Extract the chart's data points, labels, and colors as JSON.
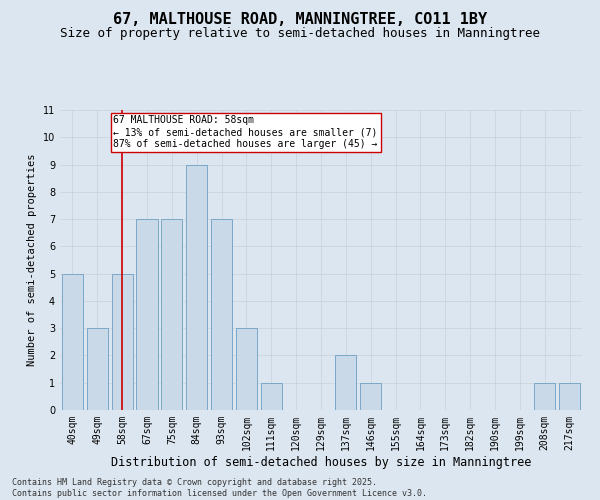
{
  "title1": "67, MALTHOUSE ROAD, MANNINGTREE, CO11 1BY",
  "title2": "Size of property relative to semi-detached houses in Manningtree",
  "xlabel": "Distribution of semi-detached houses by size in Manningtree",
  "ylabel": "Number of semi-detached properties",
  "categories": [
    "40sqm",
    "49sqm",
    "58sqm",
    "67sqm",
    "75sqm",
    "84sqm",
    "93sqm",
    "102sqm",
    "111sqm",
    "120sqm",
    "129sqm",
    "137sqm",
    "146sqm",
    "155sqm",
    "164sqm",
    "173sqm",
    "182sqm",
    "190sqm",
    "199sqm",
    "208sqm",
    "217sqm"
  ],
  "values": [
    5,
    3,
    5,
    7,
    7,
    9,
    7,
    3,
    1,
    0,
    0,
    2,
    1,
    0,
    0,
    0,
    0,
    0,
    0,
    1,
    1
  ],
  "bar_color": "#c9d9e8",
  "bar_edge_color": "#7aa8c8",
  "bar_linewidth": 0.7,
  "vline_x_index": 2,
  "vline_color": "#cc0000",
  "vline_linewidth": 1.2,
  "annotation_text": "67 MALTHOUSE ROAD: 58sqm\n← 13% of semi-detached houses are smaller (7)\n87% of semi-detached houses are larger (45) →",
  "annotation_box_color": "#ffffff",
  "annotation_box_edge": "#cc0000",
  "ylim": [
    0,
    11
  ],
  "yticks": [
    0,
    1,
    2,
    3,
    4,
    5,
    6,
    7,
    8,
    9,
    10,
    11
  ],
  "grid_color": "#c8d0d8",
  "bg_color": "#dce6f0",
  "plot_bg_color": "#dce6f0",
  "footer1": "Contains HM Land Registry data © Crown copyright and database right 2025.",
  "footer2": "Contains public sector information licensed under the Open Government Licence v3.0.",
  "title1_fontsize": 11,
  "title2_fontsize": 9,
  "xlabel_fontsize": 8.5,
  "ylabel_fontsize": 7.5,
  "tick_fontsize": 7,
  "footer_fontsize": 6,
  "annotation_fontsize": 7
}
